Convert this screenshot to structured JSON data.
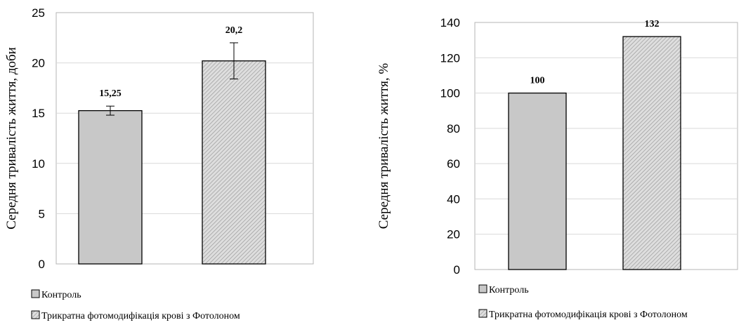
{
  "chart_data": [
    {
      "type": "bar",
      "title": "",
      "xlabel": "",
      "ylabel": "Середня тривалість життя, доби",
      "ylim": [
        0,
        25
      ],
      "yticks": [
        0,
        5,
        10,
        15,
        20,
        25
      ],
      "grid": "horizontal",
      "legend_position": "bottom",
      "categories": [
        "Контроль",
        "Трикратна фотомодифікація крові з Фотолоном"
      ],
      "values": [
        15.25,
        20.2
      ],
      "data_labels": [
        "15,25",
        "20,2"
      ],
      "error": [
        0.45,
        1.8
      ],
      "legend": [
        "Контроль",
        "Трикратна фотомодифікація крові з Фотолоном"
      ]
    },
    {
      "type": "bar",
      "title": "",
      "xlabel": "",
      "ylabel": "Середня тривалість життя, %",
      "ylim": [
        0,
        140
      ],
      "yticks": [
        0,
        20,
        40,
        60,
        80,
        100,
        120,
        140
      ],
      "grid": "horizontal",
      "legend_position": "bottom",
      "categories": [
        "Контроль",
        "Трикратна фотомодифікація крові з Фотолоном"
      ],
      "values": [
        100,
        132
      ],
      "data_labels": [
        "100",
        "132"
      ],
      "legend": [
        "Контроль",
        "Трикратна фотомодифікація крові з Фотолоном"
      ]
    }
  ],
  "colors": {
    "control_fill": "#c8c8c8",
    "treated_fill": "#dedede",
    "treated_hatch": "#9a9a9a",
    "bar_outline": "#000000",
    "grid": "#d9d9d9",
    "plot_border": "#b4b4b4"
  }
}
